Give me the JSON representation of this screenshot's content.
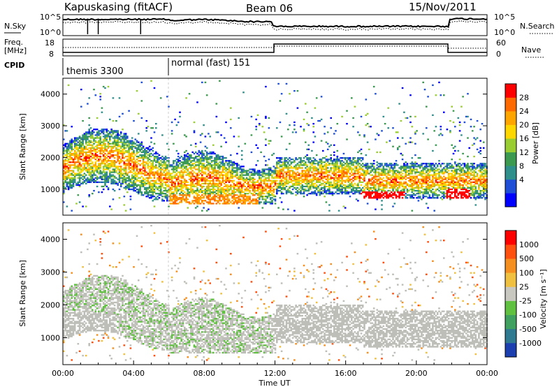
{
  "header": {
    "station": "Kapuskasing (fitACF)",
    "beam": "Beam 06",
    "date": "15/Nov/2011"
  },
  "panels": {
    "sky_label": "N.Sky",
    "search_label": "N.Search",
    "sky_ticks": [
      "10^5",
      "10^0"
    ],
    "search_ticks": [
      "10^5",
      "10^0"
    ],
    "freq_label_1": "Freq.",
    "freq_label_2": "[MHz]",
    "freq_ticks": [
      "18",
      "8"
    ],
    "nave_label": "Nave",
    "nave_ticks": [
      "60",
      "0"
    ],
    "cpid_label": "CPID",
    "cpid_modes": [
      {
        "label": "themis 3300",
        "start_hour": 0
      },
      {
        "label": "normal (fast) 151",
        "start_hour": 6
      }
    ]
  },
  "colors": {
    "power": [
      "#0000ff",
      "#1e4fd6",
      "#2f8f8a",
      "#3c9a50",
      "#9acd32",
      "#ffd700",
      "#ffa500",
      "#ff6a00",
      "#ff0000"
    ],
    "velocity": [
      "#1c3fb0",
      "#2f7a90",
      "#3fa060",
      "#60c040",
      "#c8c8c0",
      "#f0c040",
      "#f59020",
      "#ff5010",
      "#ff0000"
    ],
    "ground_scatter": "#bebeb8"
  },
  "chart_data": [
    {
      "type": "heatmap",
      "quantity": "Power",
      "ylabel": "Slant Range [km]",
      "ylim": [
        180,
        4500
      ],
      "yticks": [
        "1000",
        "2000",
        "3000",
        "4000"
      ],
      "colorbar_label": "Power [dB]",
      "colorbar_ticks": [
        "28",
        "24",
        "20",
        "16",
        "12",
        "8",
        "4"
      ],
      "xlim": [
        0,
        24
      ]
    },
    {
      "type": "heatmap",
      "quantity": "Velocity",
      "ylabel": "Slant Range [km]",
      "ylim": [
        180,
        4500
      ],
      "yticks": [
        "1000",
        "2000",
        "3000",
        "4000"
      ],
      "colorbar_label": "Velocity [m s⁻¹]",
      "colorbar_ticks": [
        "1000",
        "500",
        "100",
        "25",
        "-25",
        "-100",
        "-500",
        "-1000"
      ],
      "xlim": [
        0,
        24
      ],
      "xlabel": "Time UT",
      "xticks": [
        "00:00",
        "04:00",
        "08:00",
        "12:00",
        "16:00",
        "20:00",
        "00:00"
      ]
    }
  ]
}
